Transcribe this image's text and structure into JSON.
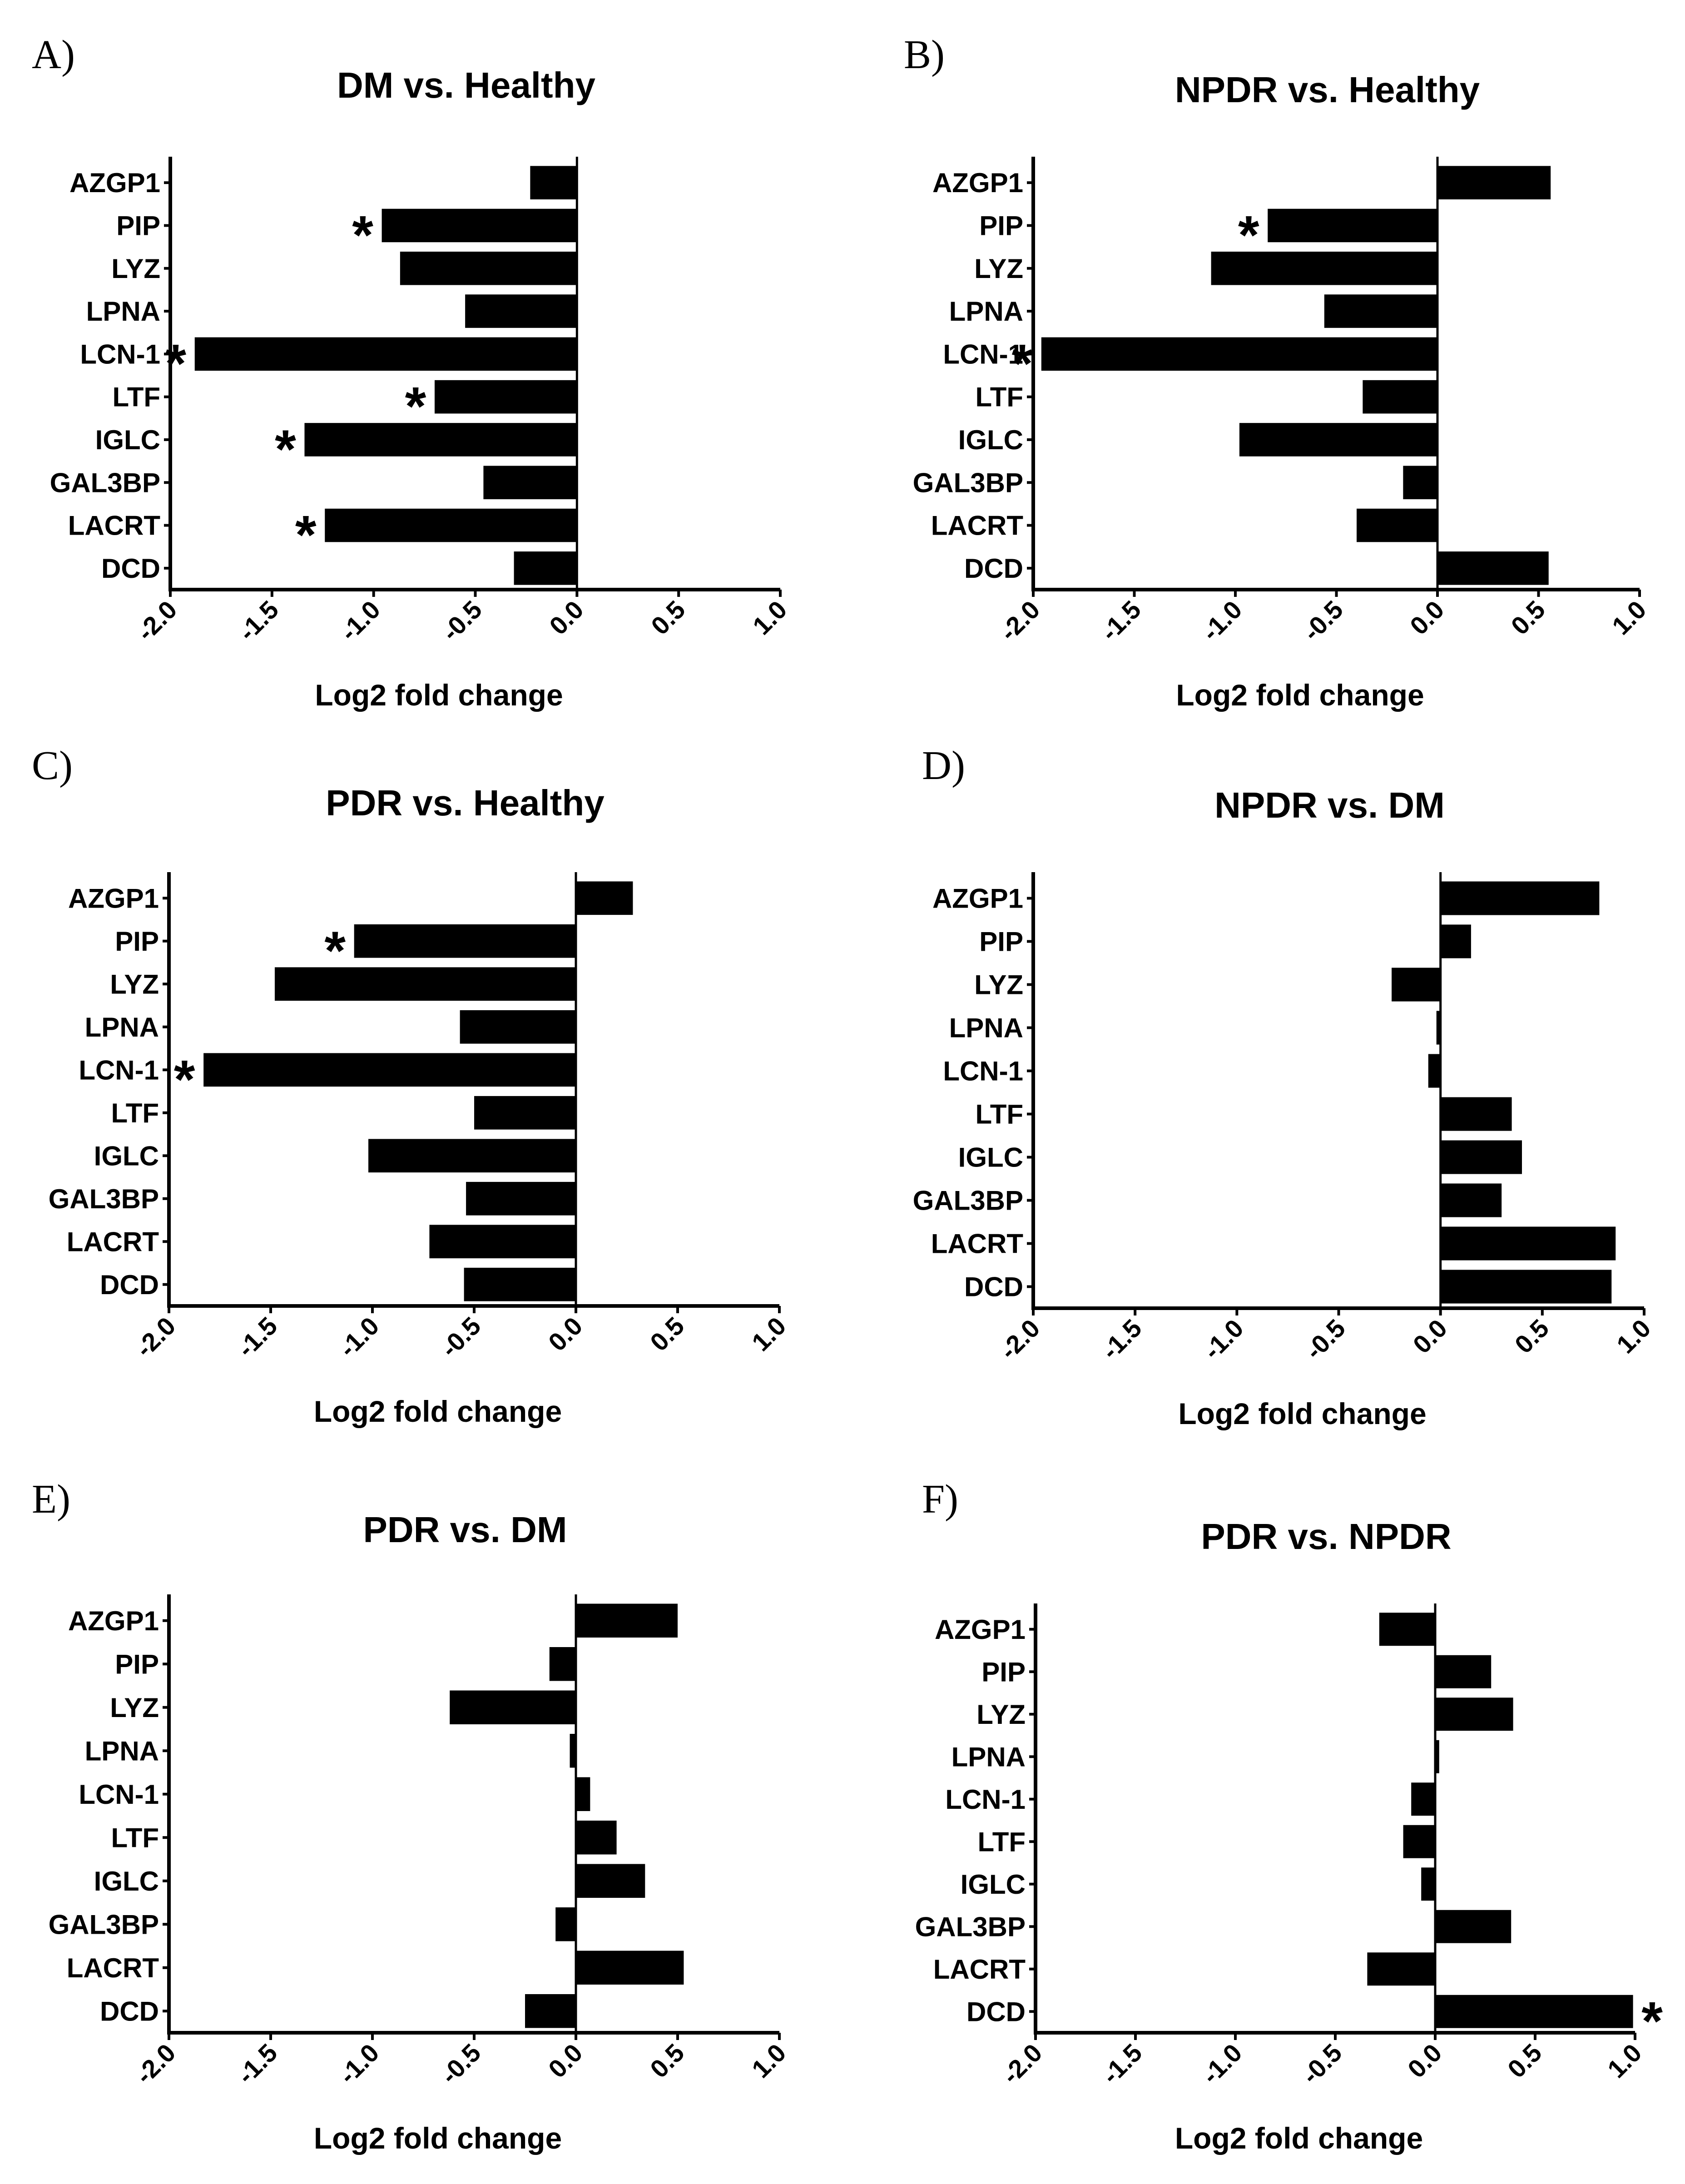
{
  "chart_data": [
    {
      "panel": "A)",
      "type": "bar",
      "orientation": "horizontal",
      "title": "DM vs. Healthy",
      "xlabel": "Log2 fold change",
      "categories": [
        "AZGP1",
        "PIP",
        "LYZ",
        "LPNA",
        "LCN-1",
        "LTF",
        "IGLC",
        "GAL3BP",
        "LACRT",
        "DCD"
      ],
      "values": [
        -0.23,
        -0.96,
        -0.87,
        -0.55,
        -1.88,
        -0.7,
        -1.34,
        -0.46,
        -1.24,
        -0.31
      ],
      "significant": [
        false,
        true,
        false,
        false,
        true,
        true,
        true,
        false,
        true,
        false
      ],
      "xlim": [
        -2.0,
        1.0
      ],
      "ticks": [
        "-2.0",
        "-1.5",
        "-1.0",
        "-0.5",
        "0.0",
        "0.5",
        "1.0"
      ]
    },
    {
      "panel": "B)",
      "type": "bar",
      "orientation": "horizontal",
      "title": "NPDR vs. Healthy",
      "xlabel": "Log2 fold change",
      "categories": [
        "AZGP1",
        "PIP",
        "LYZ",
        "LPNA",
        "LCN-1",
        "LTF",
        "IGLC",
        "GAL3BP",
        "LACRT",
        "DCD"
      ],
      "values": [
        0.56,
        -0.84,
        -1.12,
        -0.56,
        -1.96,
        -0.37,
        -0.98,
        -0.17,
        -0.4,
        0.55
      ],
      "significant": [
        false,
        true,
        false,
        false,
        true,
        false,
        false,
        false,
        false,
        false
      ],
      "xlim": [
        -2.0,
        1.0
      ],
      "ticks": [
        "-2.0",
        "-1.5",
        "-1.0",
        "-0.5",
        "0.0",
        "0.5",
        "1.0"
      ]
    },
    {
      "panel": "C)",
      "type": "bar",
      "orientation": "horizontal",
      "title": "PDR vs. Healthy",
      "xlabel": "Log2 fold change",
      "categories": [
        "AZGP1",
        "PIP",
        "LYZ",
        "LPNA",
        "LCN-1",
        "LTF",
        "IGLC",
        "GAL3BP",
        "LACRT",
        "DCD"
      ],
      "values": [
        0.28,
        -1.09,
        -1.48,
        -0.57,
        -1.83,
        -0.5,
        -1.02,
        -0.54,
        -0.72,
        -0.55
      ],
      "significant": [
        false,
        true,
        false,
        false,
        true,
        false,
        false,
        false,
        false,
        false
      ],
      "xlim": [
        -2.0,
        1.0
      ],
      "ticks": [
        "-2.0",
        "-1.5",
        "-1.0",
        "-0.5",
        "0.0",
        "0.5",
        "1.0"
      ]
    },
    {
      "panel": "D)",
      "type": "bar",
      "orientation": "horizontal",
      "title": "NPDR vs. DM",
      "xlabel": "Log2 fold change",
      "categories": [
        "AZGP1",
        "PIP",
        "LYZ",
        "LPNA",
        "LCN-1",
        "LTF",
        "IGLC",
        "GAL3BP",
        "LACRT",
        "DCD"
      ],
      "values": [
        0.78,
        0.15,
        -0.24,
        -0.02,
        -0.06,
        0.35,
        0.4,
        0.3,
        0.86,
        0.84
      ],
      "significant": [
        false,
        false,
        false,
        false,
        false,
        false,
        false,
        false,
        false,
        false
      ],
      "xlim": [
        -2.0,
        1.0
      ],
      "ticks": [
        "-2.0",
        "-1.5",
        "-1.0",
        "-0.5",
        "0.0",
        "0.5",
        "1.0"
      ]
    },
    {
      "panel": "E)",
      "type": "bar",
      "orientation": "horizontal",
      "title": "PDR vs. DM",
      "xlabel": "Log2 fold change",
      "categories": [
        "AZGP1",
        "PIP",
        "LYZ",
        "LPNA",
        "LCN-1",
        "LTF",
        "IGLC",
        "GAL3BP",
        "LACRT",
        "DCD"
      ],
      "values": [
        0.5,
        -0.13,
        -0.62,
        -0.03,
        0.07,
        0.2,
        0.34,
        -0.1,
        0.53,
        -0.25
      ],
      "significant": [
        false,
        false,
        false,
        false,
        false,
        false,
        false,
        false,
        false,
        false
      ],
      "xlim": [
        -2.0,
        1.0
      ],
      "ticks": [
        "-2.0",
        "-1.5",
        "-1.0",
        "-0.5",
        "0.0",
        "0.5",
        "1.0"
      ]
    },
    {
      "panel": "F)",
      "type": "bar",
      "orientation": "horizontal",
      "title": "PDR vs. NPDR",
      "xlabel": "Log2 fold change",
      "categories": [
        "AZGP1",
        "PIP",
        "LYZ",
        "LPNA",
        "LCN-1",
        "LTF",
        "IGLC",
        "GAL3BP",
        "LACRT",
        "DCD"
      ],
      "values": [
        -0.28,
        0.28,
        0.39,
        0.02,
        -0.12,
        -0.16,
        -0.07,
        0.38,
        -0.34,
        0.99
      ],
      "significant": [
        false,
        false,
        false,
        false,
        false,
        false,
        false,
        false,
        false,
        true
      ],
      "xlim": [
        -2.0,
        1.0
      ],
      "ticks": [
        "-2.0",
        "-1.5",
        "-1.0",
        "-0.5",
        "0.0",
        "0.5",
        "1.0"
      ]
    }
  ],
  "significance_marker": "*"
}
